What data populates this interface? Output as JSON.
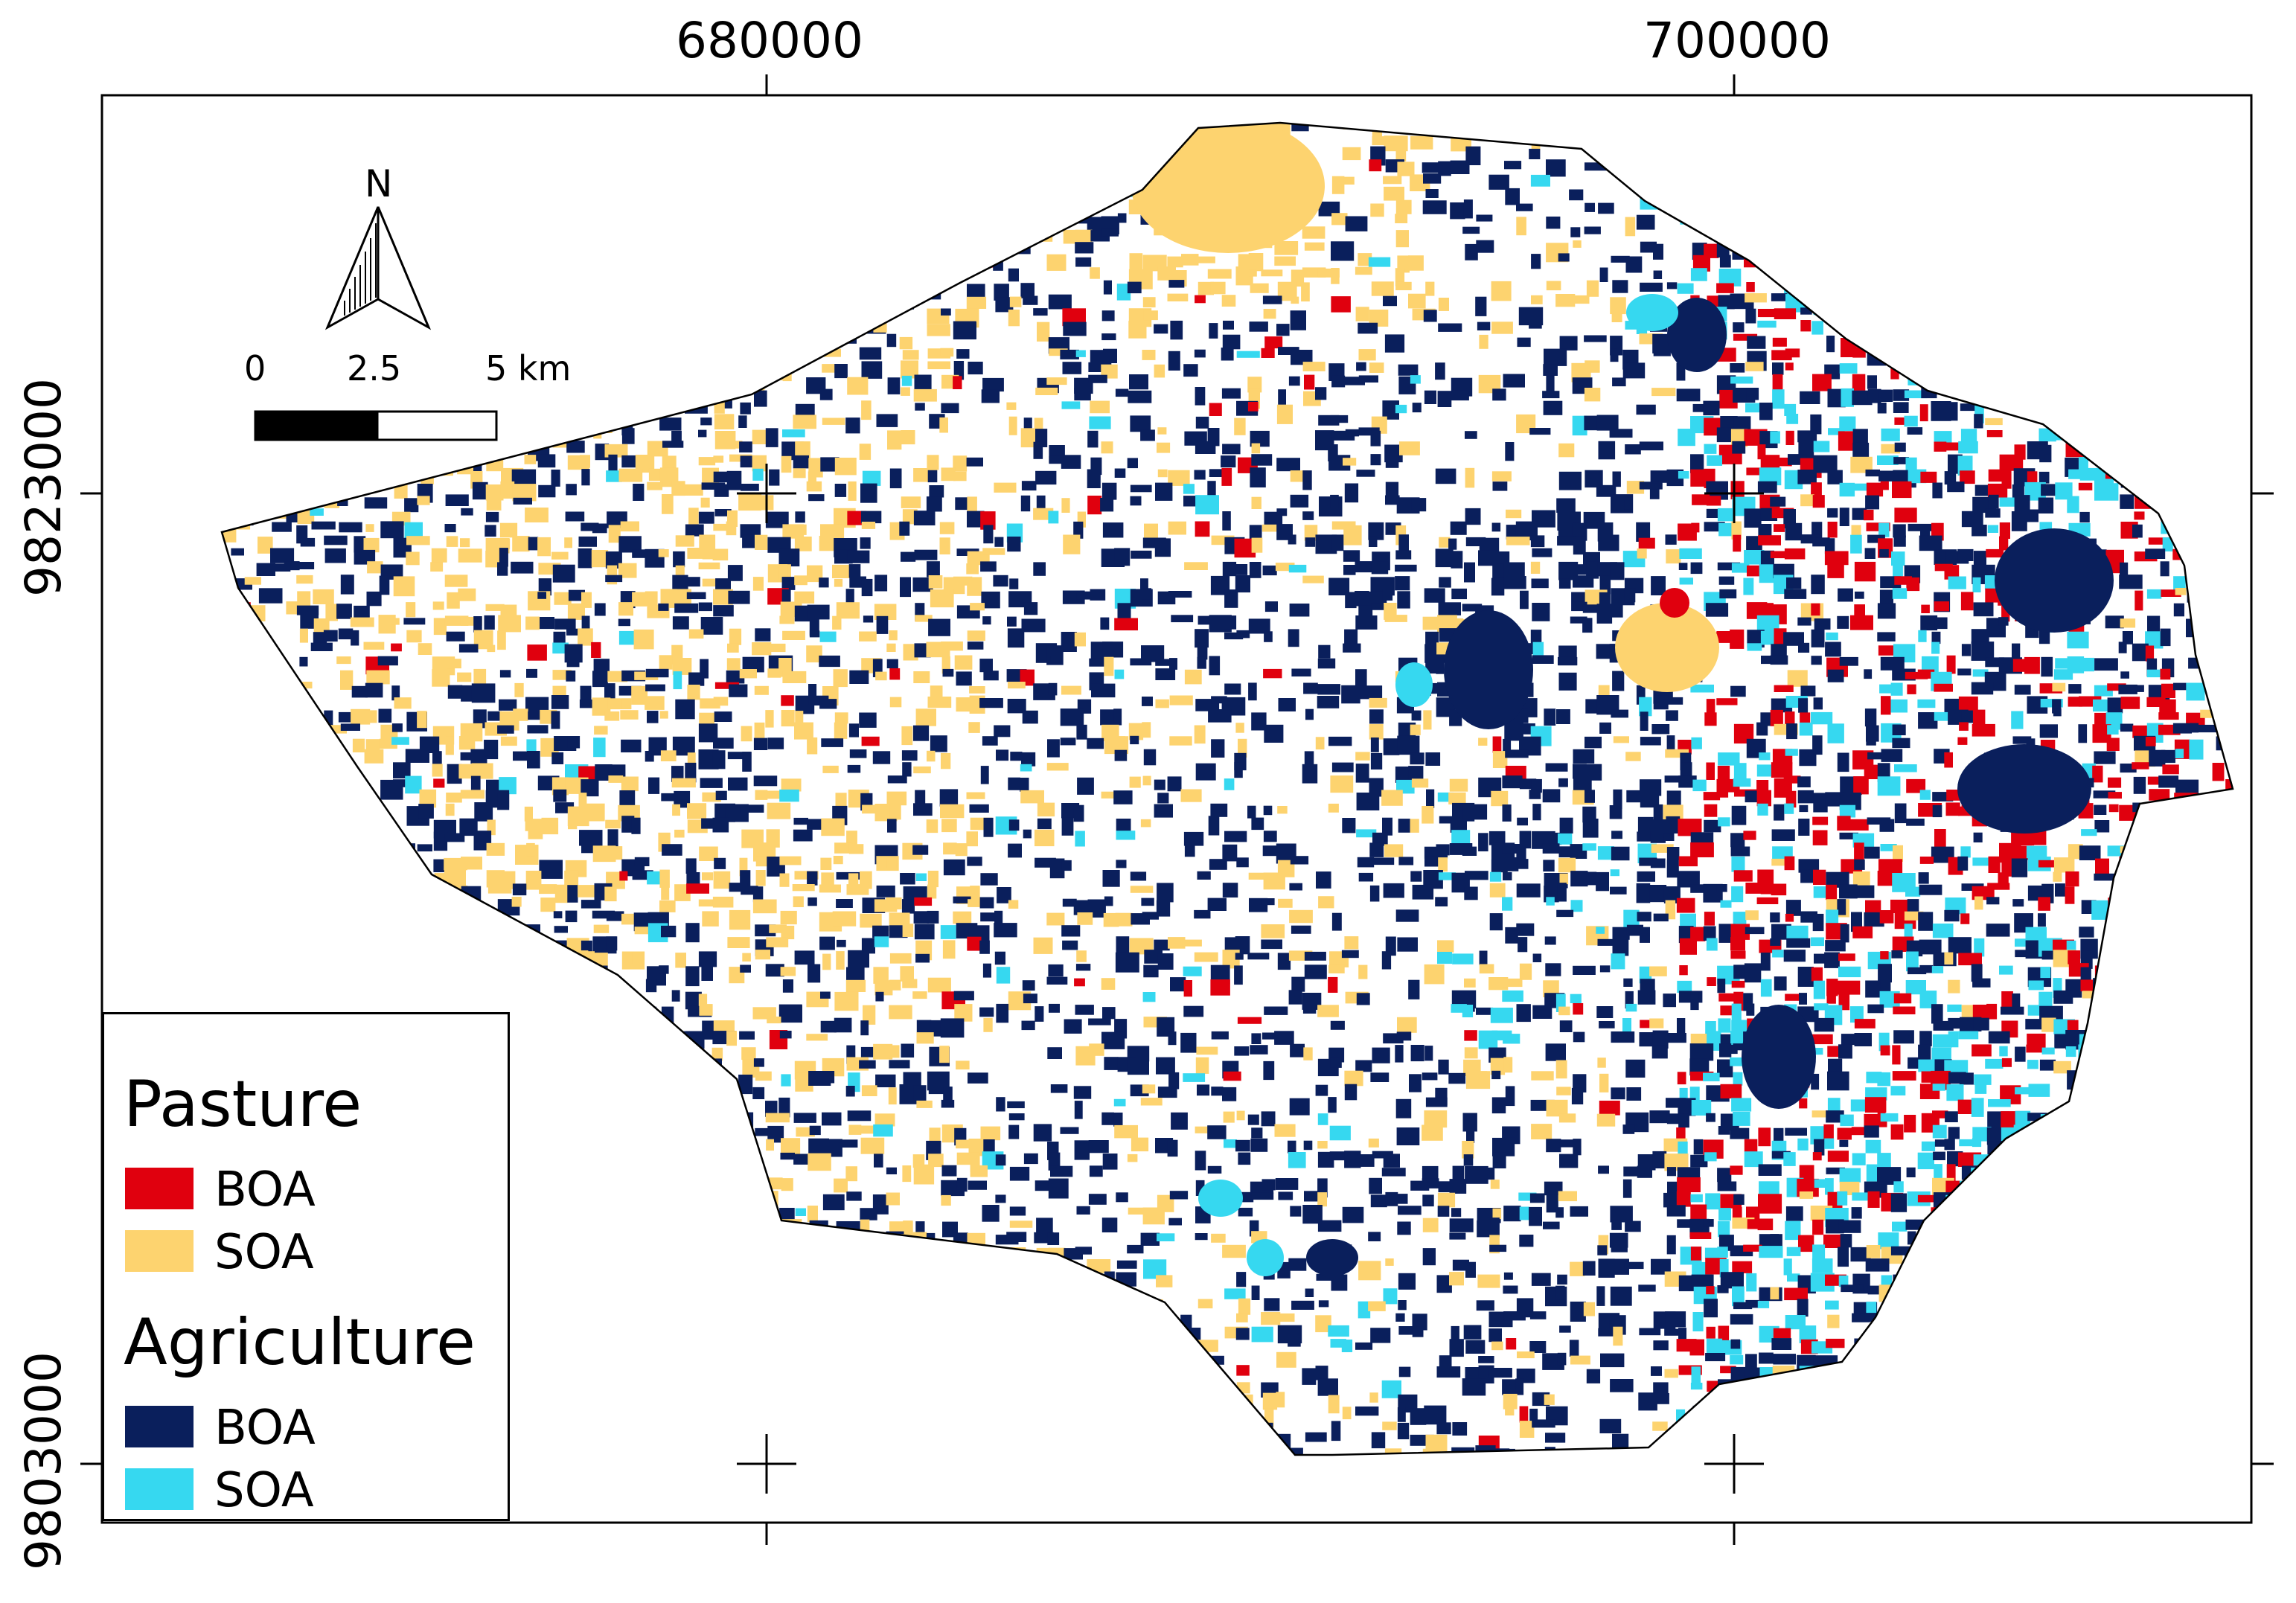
{
  "axes": {
    "x_ticks": [
      "680000",
      "700000"
    ],
    "y_ticks": [
      "9823000",
      "9803000"
    ]
  },
  "north_arrow": {
    "label": "N"
  },
  "scale_bar": {
    "labels": [
      "0",
      "2.5",
      "5 km"
    ]
  },
  "legend": {
    "groups": [
      {
        "title": "Pasture",
        "items": [
          {
            "label": "BOA",
            "color": "#e0000e"
          },
          {
            "label": "SOA",
            "color": "#fdd36f"
          }
        ]
      },
      {
        "title": "Agriculture",
        "items": [
          {
            "label": "BOA",
            "color": "#0a1f5c"
          },
          {
            "label": "SOA",
            "color": "#36d8f0"
          }
        ]
      }
    ]
  },
  "colors": {
    "pasture_boa": "#e0000e",
    "pasture_soa": "#fdd36f",
    "agriculture_boa": "#0a1f5c",
    "agriculture_soa": "#36d8f0"
  }
}
